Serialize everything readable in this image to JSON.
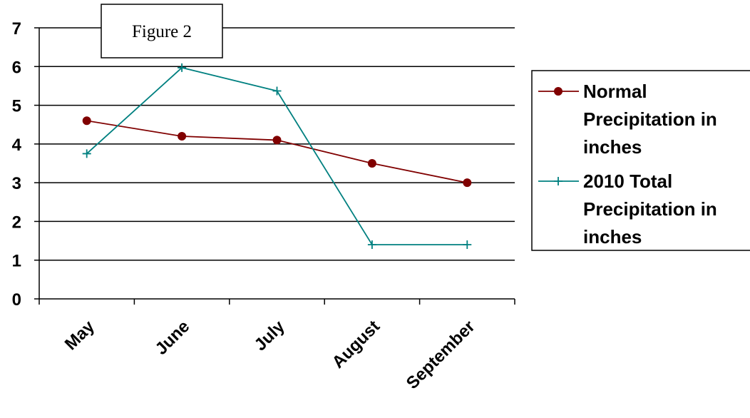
{
  "chart_data": {
    "type": "line",
    "categories": [
      "May",
      "June",
      "July",
      "August",
      "September"
    ],
    "series": [
      {
        "name": "Normal Precipitation in inches",
        "name_lines": [
          "Normal",
          "Precipitation in",
          "inches"
        ],
        "values": [
          4.6,
          4.2,
          4.1,
          3.5,
          3.0
        ],
        "color": "#800000",
        "marker": "circle"
      },
      {
        "name": "2010 Total Precipitation in inches",
        "name_lines": [
          "2010 Total",
          "Precipitation in",
          "inches"
        ],
        "values": [
          3.75,
          5.97,
          5.37,
          1.4,
          1.4
        ],
        "color": "#008080",
        "marker": "plus"
      }
    ],
    "ylim": [
      0,
      7
    ],
    "yticks": [
      "0",
      "1",
      "2",
      "3",
      "4",
      "5",
      "6",
      "7"
    ],
    "grid": true,
    "legend": "right",
    "annotation": "Figure 2"
  }
}
